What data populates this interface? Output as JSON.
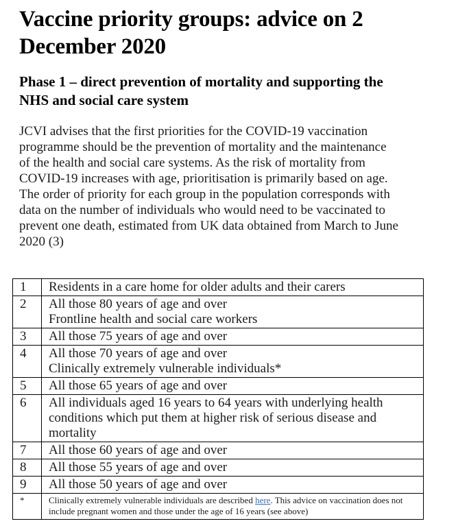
{
  "page": {
    "title": "Vaccine priority groups: advice on 2\nDecember 2020",
    "subtitle": "Phase 1 – direct prevention of mortality and supporting the\nNHS and social care system",
    "paragraph": "JCVI advises that the first priorities for the COVID-19 vaccination\nprogramme should be the prevention of mortality and the maintenance\nof the health and social care systems. As the risk of mortality from\nCOVID-19 increases with age, prioritisation is primarily based on age.\nThe order of priority for each group in the population corresponds with\ndata on the number of individuals who would need to be vaccinated to\nprevent one death, estimated from UK data obtained from March to June\n2020 (3)"
  },
  "table": {
    "rows": [
      {
        "number": "1",
        "lines": [
          "Residents in a care home for older adults and their carers"
        ]
      },
      {
        "number": "2",
        "lines": [
          "All those 80 years of age and over",
          "Frontline health and social care workers"
        ]
      },
      {
        "number": "3",
        "lines": [
          "All those 75 years of age and over"
        ]
      },
      {
        "number": "4",
        "lines": [
          "All those 70 years of age and over",
          "Clinically extremely vulnerable individuals*"
        ]
      },
      {
        "number": "5",
        "lines": [
          "All those 65 years of age and over"
        ]
      },
      {
        "number": "6",
        "lines": [
          "All individuals aged 16 years to 64 years with underlying health",
          "conditions which put them at higher risk of serious disease and",
          "mortality"
        ]
      },
      {
        "number": "7",
        "lines": [
          "All those 60 years of age and over"
        ]
      },
      {
        "number": "8",
        "lines": [
          "All those 55 years of age and over"
        ]
      },
      {
        "number": "9",
        "lines": [
          "All those 50 years of age and over"
        ]
      }
    ],
    "footnote": {
      "marker": "*",
      "text_before_link": "Clinically extremely vulnerable individuals are described ",
      "link_text": "here",
      "text_after_link": ". This advice on vaccination does not include pregnant women and those under the age of 16 years (see above)"
    }
  },
  "colors": {
    "text": "#1b1b1b",
    "heading": "#000000",
    "link": "#3b6cb0",
    "table_border": "#000000",
    "background": "#ffffff"
  }
}
